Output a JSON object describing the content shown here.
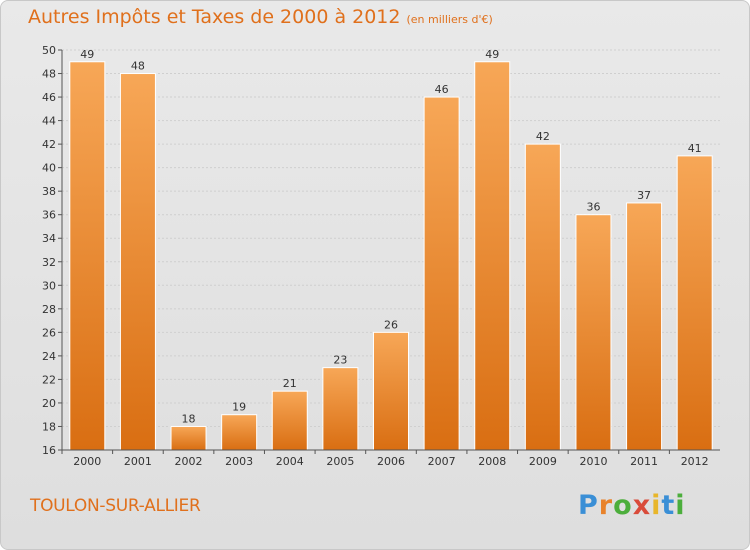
{
  "title": "Autres Impôts et Taxes de 2000 à 2012",
  "subtitle": "(en milliers d'€)",
  "place": "TOULON-SUR-ALLIER",
  "logo": "Proxiti",
  "colors": {
    "bar": "#f08c32",
    "bar_light": "#f7a757",
    "bar_dark": "#d96e12",
    "text_accent": "#e0701c"
  },
  "chart_data": {
    "type": "bar",
    "title": "Autres Impôts et Taxes de 2000 à 2012",
    "subtitle": "(en milliers d'€)",
    "xlabel": "",
    "ylabel": "",
    "categories": [
      "2000",
      "2001",
      "2002",
      "2003",
      "2004",
      "2005",
      "2006",
      "2007",
      "2008",
      "2009",
      "2010",
      "2011",
      "2012"
    ],
    "values": [
      49,
      48,
      18,
      19,
      21,
      23,
      26,
      46,
      49,
      42,
      36,
      37,
      41
    ],
    "ylim": [
      16,
      50
    ],
    "yticks": [
      16,
      18,
      20,
      22,
      24,
      26,
      28,
      30,
      32,
      34,
      36,
      38,
      40,
      42,
      44,
      46,
      48,
      50
    ],
    "grid": true
  }
}
